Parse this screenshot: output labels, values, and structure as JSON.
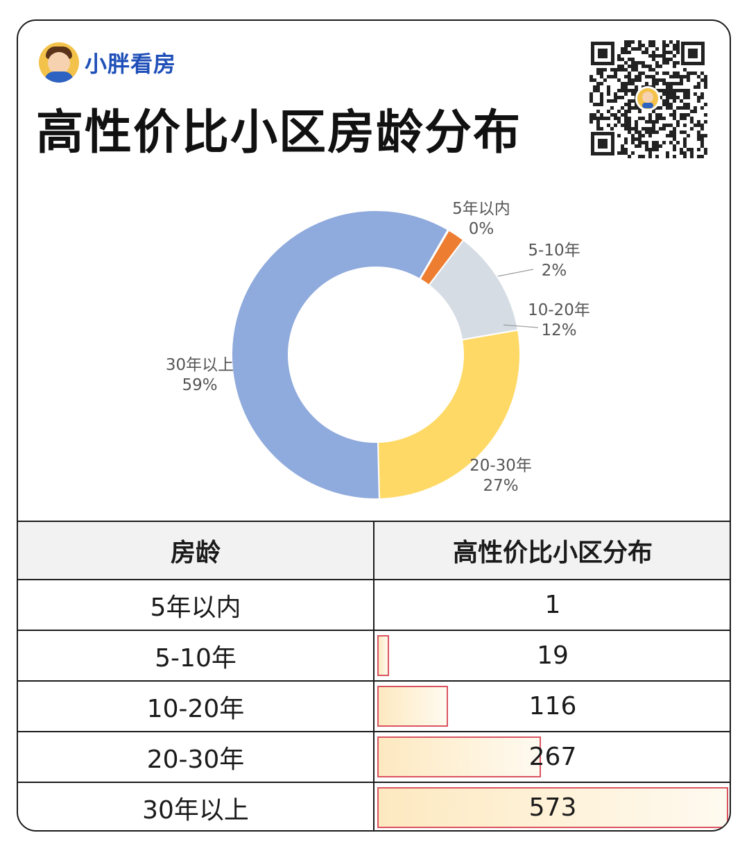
{
  "brand": {
    "name": "小胖看房",
    "logo_icon": "avatar-icon"
  },
  "title": "高性价比小区房龄分布",
  "qr": {
    "icon": "qr-code-icon"
  },
  "chart_data": {
    "type": "pie",
    "donut": true,
    "categories": [
      "5年以内",
      "5-10年",
      "10-20年",
      "20-30年",
      "30年以上"
    ],
    "values": [
      1,
      19,
      116,
      267,
      573
    ],
    "percent_labels": [
      "0%",
      "2%",
      "12%",
      "27%",
      "59%"
    ],
    "colors": [
      "#4472c4",
      "#ed7d31",
      "#d6dce4",
      "#ffd966",
      "#8faadc"
    ],
    "legend": "none"
  },
  "table": {
    "headers": [
      "房龄",
      "高性价比小区分布"
    ],
    "rows": [
      {
        "label": "5年以内",
        "value": "1"
      },
      {
        "label": "5-10年",
        "value": "19"
      },
      {
        "label": "10-20年",
        "value": "116"
      },
      {
        "label": "20-30年",
        "value": "267"
      },
      {
        "label": "30年以上",
        "value": "573"
      }
    ]
  }
}
